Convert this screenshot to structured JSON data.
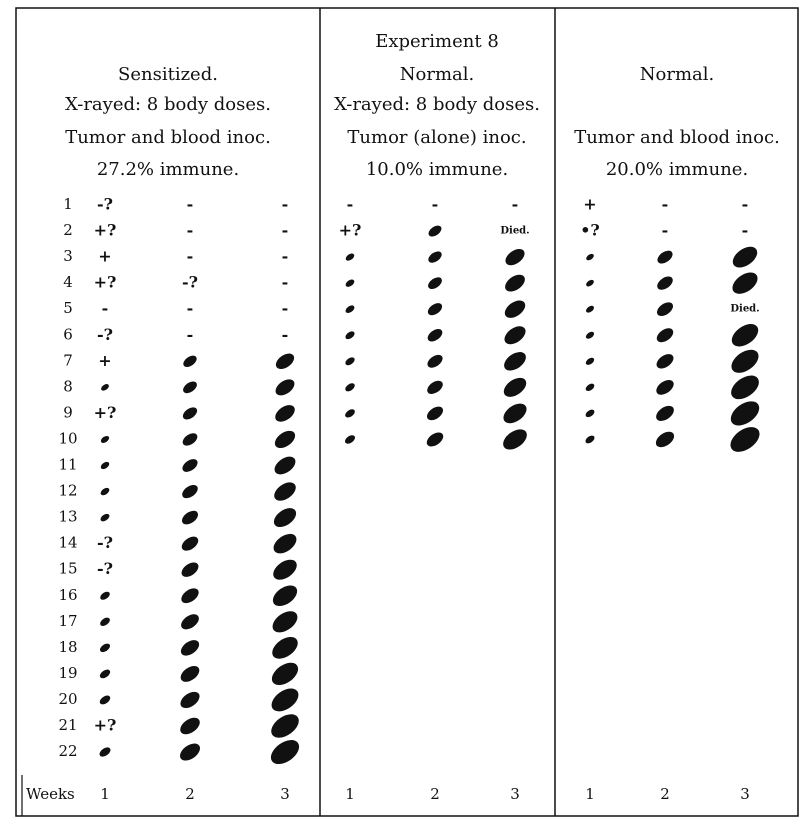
{
  "title": "Experiment 8",
  "row_labels": [
    1,
    2,
    3,
    4,
    5,
    6,
    7,
    8,
    9,
    10,
    11,
    12,
    13,
    14,
    15,
    16,
    17,
    18,
    19,
    20,
    21,
    22
  ],
  "weeks_label": "Weeks",
  "panels": [
    {
      "header": [
        "Sensitized.",
        "X-rayed: 8 body doses.",
        "Tumor and blood inoc.",
        "27.2% immune."
      ],
      "week_labels": [
        1,
        2,
        3
      ],
      "rows": [
        [
          "-?",
          "-",
          "-"
        ],
        [
          "+?",
          "-",
          "-"
        ],
        [
          "+",
          "-",
          "-"
        ],
        [
          "+?",
          "-?",
          "-"
        ],
        [
          "-",
          "-",
          "-"
        ],
        [
          "-?",
          "-",
          "-"
        ],
        [
          "+",
          null,
          null
        ],
        [
          null,
          null,
          null
        ],
        [
          "+?",
          null,
          null
        ],
        [
          null,
          null,
          null
        ],
        [
          null,
          null,
          null
        ],
        [
          null,
          null,
          null
        ],
        [
          null,
          null,
          null
        ],
        [
          "-?",
          null,
          null
        ],
        [
          "-?",
          null,
          null
        ],
        [
          null,
          null,
          null
        ],
        [
          null,
          null,
          null
        ],
        [
          null,
          null,
          null
        ],
        [
          null,
          null,
          null
        ],
        [
          null,
          null,
          null
        ],
        [
          "+?",
          null,
          null
        ],
        [
          null,
          null,
          null
        ]
      ]
    },
    {
      "header": [
        "Normal.",
        "X-rayed: 8 body doses.",
        "Tumor (alone) inoc.",
        "10.0% immune."
      ],
      "week_labels": [
        1,
        2,
        3
      ],
      "rows": [
        [
          "-",
          "-",
          "-"
        ],
        [
          "+?",
          null,
          "Died."
        ],
        [
          null,
          null,
          null
        ],
        [
          null,
          null,
          null
        ],
        [
          null,
          null,
          null
        ],
        [
          null,
          null,
          null
        ],
        [
          null,
          null,
          null
        ],
        [
          null,
          null,
          null
        ],
        [
          null,
          null,
          null
        ],
        [
          null,
          null,
          null
        ]
      ]
    },
    {
      "header": [
        "Normal.",
        null,
        "Tumor and blood inoc.",
        "20.0% immune."
      ],
      "week_labels": [
        1,
        2,
        3
      ],
      "rows": [
        [
          "+",
          "-",
          "-"
        ],
        [
          "•?",
          "-",
          "-"
        ],
        [
          null,
          null,
          null
        ],
        [
          null,
          null,
          null
        ],
        [
          null,
          null,
          "Died."
        ],
        [
          null,
          null,
          null
        ],
        [
          null,
          null,
          null
        ],
        [
          null,
          null,
          null
        ],
        [
          null,
          null,
          null
        ],
        [
          null,
          null,
          null
        ]
      ]
    }
  ]
}
